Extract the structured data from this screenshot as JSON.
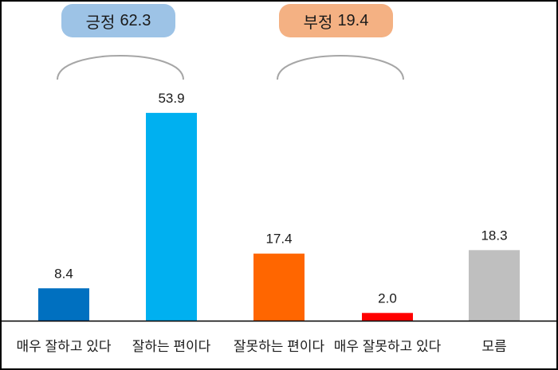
{
  "summary": {
    "positive": {
      "label": "긍정",
      "value": "62.3",
      "color": "#9DC3E6"
    },
    "negative": {
      "label": "부정",
      "value": "19.4",
      "color": "#F4B183"
    }
  },
  "chart_data": {
    "type": "bar",
    "categories": [
      "매우 잘하고 있다",
      "잘하는 편이다",
      "잘못하는 편이다",
      "매우 잘못하고 있다",
      "모름"
    ],
    "values": [
      8.4,
      53.9,
      17.4,
      2.0,
      18.3
    ],
    "value_labels": [
      "8.4",
      "53.9",
      "17.4",
      "2.0",
      "18.3"
    ],
    "colors": [
      "#0070C0",
      "#00B0F0",
      "#FF6600",
      "#FF0000",
      "#BFBFBF"
    ],
    "title": "",
    "xlabel": "",
    "ylabel": "",
    "ylim": [
      0,
      60
    ],
    "grid": false,
    "legend": "none"
  }
}
